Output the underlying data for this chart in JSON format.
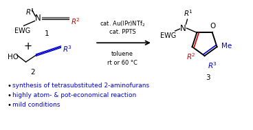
{
  "bg_color": "#ffffff",
  "black": "#000000",
  "red": "#cc0000",
  "blue": "#0000cc",
  "gray": "#444444",
  "bullet_color": "#0000dd",
  "bullet_items": [
    "synthesis of tetrasubstituted 2-aminofurans",
    "highly atom- & pot-economical reaction",
    "mild conditions"
  ],
  "figsize": [
    3.68,
    1.89
  ],
  "dpi": 100
}
